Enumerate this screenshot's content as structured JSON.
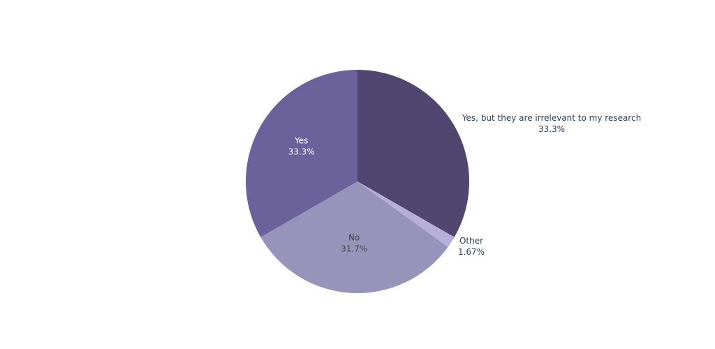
{
  "chart_data": {
    "type": "pie",
    "title": "",
    "slices": [
      {
        "label": "Yes, but they are irrelevant to my research",
        "value": 33.3,
        "value_label": "33.3%",
        "color": "#51466f",
        "label_position": "outside",
        "text_color": "#2a3f5f"
      },
      {
        "label": "Other",
        "value": 1.67,
        "value_label": "1.67%",
        "color": "#b6b0d8",
        "label_position": "outside",
        "text_color": "#2a3f5f"
      },
      {
        "label": "No",
        "value": 31.7,
        "value_label": "31.7%",
        "color": "#9694bb",
        "label_position": "inside",
        "text_color": "#444444"
      },
      {
        "label": "Yes",
        "value": 33.3,
        "value_label": "33.3%",
        "color": "#6c629b",
        "label_position": "inside",
        "text_color": "#ffffff"
      }
    ],
    "start_angle": "top",
    "direction": "clockwise",
    "legend": "none"
  }
}
